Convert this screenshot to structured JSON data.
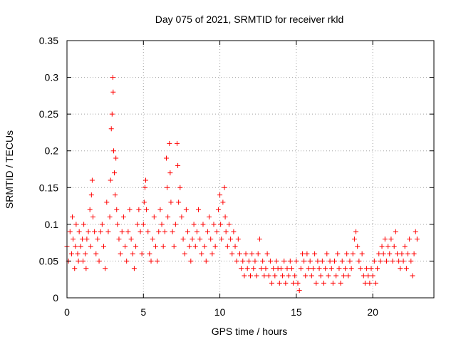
{
  "chart_data": {
    "type": "scatter",
    "title": "Day 075 of 2021, SRMTID for receiver rkld",
    "xlabel": "GPS time / hours",
    "ylabel": "SRMTID / TECUs",
    "xlim": [
      0,
      24
    ],
    "ylim": [
      0,
      0.35
    ],
    "xticks": [
      0,
      5,
      10,
      15,
      20
    ],
    "xtick_labels": [
      "0",
      "5",
      "10",
      "15",
      "20"
    ],
    "yticks": [
      0,
      0.05,
      0.1,
      0.15,
      0.2,
      0.25,
      0.3,
      0.35
    ],
    "ytick_labels": [
      "0",
      "0.05",
      "0.1",
      "0.15",
      "0.2",
      "0.25",
      "0.3",
      "0.35"
    ],
    "grid": true,
    "marker": "+",
    "color": "#ff0000",
    "series": [
      {
        "name": "SRMTID",
        "points": [
          [
            0.0,
            0.07
          ],
          [
            0.1,
            0.05
          ],
          [
            0.2,
            0.09
          ],
          [
            0.3,
            0.06
          ],
          [
            0.35,
            0.11
          ],
          [
            0.4,
            0.08
          ],
          [
            0.5,
            0.04
          ],
          [
            0.55,
            0.07
          ],
          [
            0.6,
            0.1
          ],
          [
            0.7,
            0.06
          ],
          [
            0.75,
            0.05
          ],
          [
            0.8,
            0.09
          ],
          [
            0.9,
            0.07
          ],
          [
            1.0,
            0.08
          ],
          [
            1.05,
            0.05
          ],
          [
            1.1,
            0.1
          ],
          [
            1.2,
            0.06
          ],
          [
            1.25,
            0.04
          ],
          [
            1.3,
            0.08
          ],
          [
            1.4,
            0.09
          ],
          [
            1.5,
            0.12
          ],
          [
            1.55,
            0.07
          ],
          [
            1.6,
            0.14
          ],
          [
            1.65,
            0.16
          ],
          [
            1.7,
            0.11
          ],
          [
            1.8,
            0.09
          ],
          [
            1.9,
            0.06
          ],
          [
            2.0,
            0.08
          ],
          [
            2.1,
            0.05
          ],
          [
            2.2,
            0.09
          ],
          [
            2.3,
            0.1
          ],
          [
            2.4,
            0.07
          ],
          [
            2.5,
            0.04
          ],
          [
            2.6,
            0.13
          ],
          [
            2.7,
            0.09
          ],
          [
            2.8,
            0.11
          ],
          [
            2.85,
            0.16
          ],
          [
            2.9,
            0.23
          ],
          [
            2.95,
            0.25
          ],
          [
            3.0,
            0.3
          ],
          [
            3.02,
            0.28
          ],
          [
            3.05,
            0.2
          ],
          [
            3.1,
            0.17
          ],
          [
            3.15,
            0.14
          ],
          [
            3.2,
            0.19
          ],
          [
            3.25,
            0.12
          ],
          [
            3.3,
            0.1
          ],
          [
            3.4,
            0.08
          ],
          [
            3.5,
            0.06
          ],
          [
            3.6,
            0.09
          ],
          [
            3.7,
            0.11
          ],
          [
            3.8,
            0.07
          ],
          [
            3.9,
            0.05
          ],
          [
            4.0,
            0.09
          ],
          [
            4.1,
            0.12
          ],
          [
            4.2,
            0.08
          ],
          [
            4.3,
            0.06
          ],
          [
            4.4,
            0.04
          ],
          [
            4.5,
            0.07
          ],
          [
            4.6,
            0.1
          ],
          [
            4.7,
            0.12
          ],
          [
            4.8,
            0.09
          ],
          [
            4.9,
            0.06
          ],
          [
            5.0,
            0.1
          ],
          [
            5.05,
            0.13
          ],
          [
            5.1,
            0.15
          ],
          [
            5.15,
            0.16
          ],
          [
            5.2,
            0.12
          ],
          [
            5.3,
            0.09
          ],
          [
            5.4,
            0.06
          ],
          [
            5.5,
            0.05
          ],
          [
            5.6,
            0.08
          ],
          [
            5.7,
            0.11
          ],
          [
            5.8,
            0.07
          ],
          [
            5.9,
            0.05
          ],
          [
            6.0,
            0.09
          ],
          [
            6.1,
            0.12
          ],
          [
            6.2,
            0.1
          ],
          [
            6.3,
            0.07
          ],
          [
            6.4,
            0.09
          ],
          [
            6.5,
            0.19
          ],
          [
            6.55,
            0.15
          ],
          [
            6.6,
            0.11
          ],
          [
            6.7,
            0.21
          ],
          [
            6.75,
            0.17
          ],
          [
            6.8,
            0.13
          ],
          [
            6.9,
            0.09
          ],
          [
            7.0,
            0.07
          ],
          [
            7.1,
            0.1
          ],
          [
            7.2,
            0.21
          ],
          [
            7.25,
            0.18
          ],
          [
            7.3,
            0.13
          ],
          [
            7.4,
            0.15
          ],
          [
            7.5,
            0.11
          ],
          [
            7.6,
            0.08
          ],
          [
            7.7,
            0.06
          ],
          [
            7.8,
            0.12
          ],
          [
            7.9,
            0.09
          ],
          [
            8.0,
            0.07
          ],
          [
            8.1,
            0.05
          ],
          [
            8.2,
            0.08
          ],
          [
            8.3,
            0.1
          ],
          [
            8.4,
            0.07
          ],
          [
            8.5,
            0.09
          ],
          [
            8.6,
            0.12
          ],
          [
            8.7,
            0.08
          ],
          [
            8.8,
            0.06
          ],
          [
            8.9,
            0.1
          ],
          [
            9.0,
            0.07
          ],
          [
            9.1,
            0.05
          ],
          [
            9.2,
            0.09
          ],
          [
            9.3,
            0.11
          ],
          [
            9.4,
            0.08
          ],
          [
            9.5,
            0.06
          ],
          [
            9.6,
            0.1
          ],
          [
            9.7,
            0.07
          ],
          [
            9.8,
            0.09
          ],
          [
            9.9,
            0.12
          ],
          [
            10.0,
            0.14
          ],
          [
            10.05,
            0.1
          ],
          [
            10.1,
            0.08
          ],
          [
            10.2,
            0.13
          ],
          [
            10.3,
            0.15
          ],
          [
            10.35,
            0.11
          ],
          [
            10.4,
            0.09
          ],
          [
            10.5,
            0.07
          ],
          [
            10.6,
            0.1
          ],
          [
            10.7,
            0.08
          ],
          [
            10.8,
            0.06
          ],
          [
            10.9,
            0.09
          ],
          [
            11.0,
            0.07
          ],
          [
            11.1,
            0.05
          ],
          [
            11.2,
            0.08
          ],
          [
            11.3,
            0.06
          ],
          [
            11.4,
            0.04
          ],
          [
            11.5,
            0.05
          ],
          [
            11.6,
            0.03
          ],
          [
            11.7,
            0.06
          ],
          [
            11.8,
            0.04
          ],
          [
            11.9,
            0.05
          ],
          [
            12.0,
            0.03
          ],
          [
            12.1,
            0.06
          ],
          [
            12.2,
            0.04
          ],
          [
            12.3,
            0.05
          ],
          [
            12.4,
            0.03
          ],
          [
            12.5,
            0.06
          ],
          [
            12.6,
            0.08
          ],
          [
            12.7,
            0.04
          ],
          [
            12.8,
            0.05
          ],
          [
            12.9,
            0.03
          ],
          [
            13.0,
            0.04
          ],
          [
            13.1,
            0.06
          ],
          [
            13.2,
            0.03
          ],
          [
            13.3,
            0.05
          ],
          [
            13.4,
            0.02
          ],
          [
            13.5,
            0.04
          ],
          [
            13.6,
            0.03
          ],
          [
            13.7,
            0.05
          ],
          [
            13.8,
            0.04
          ],
          [
            13.9,
            0.02
          ],
          [
            14.0,
            0.04
          ],
          [
            14.1,
            0.03
          ],
          [
            14.2,
            0.05
          ],
          [
            14.3,
            0.02
          ],
          [
            14.4,
            0.04
          ],
          [
            14.5,
            0.03
          ],
          [
            14.6,
            0.05
          ],
          [
            14.7,
            0.04
          ],
          [
            14.8,
            0.02
          ],
          [
            14.9,
            0.03
          ],
          [
            15.0,
            0.05
          ],
          [
            15.1,
            0.02
          ],
          [
            15.2,
            0.01
          ],
          [
            15.3,
            0.04
          ],
          [
            15.4,
            0.06
          ],
          [
            15.5,
            0.05
          ],
          [
            15.6,
            0.03
          ],
          [
            15.7,
            0.06
          ],
          [
            15.8,
            0.04
          ],
          [
            15.9,
            0.05
          ],
          [
            16.0,
            0.03
          ],
          [
            16.1,
            0.04
          ],
          [
            16.2,
            0.06
          ],
          [
            16.3,
            0.02
          ],
          [
            16.4,
            0.05
          ],
          [
            16.5,
            0.04
          ],
          [
            16.6,
            0.03
          ],
          [
            16.7,
            0.05
          ],
          [
            16.8,
            0.02
          ],
          [
            16.9,
            0.04
          ],
          [
            17.0,
            0.06
          ],
          [
            17.1,
            0.03
          ],
          [
            17.2,
            0.05
          ],
          [
            17.3,
            0.04
          ],
          [
            17.4,
            0.02
          ],
          [
            17.5,
            0.05
          ],
          [
            17.6,
            0.03
          ],
          [
            17.7,
            0.06
          ],
          [
            17.8,
            0.04
          ],
          [
            17.9,
            0.02
          ],
          [
            18.0,
            0.05
          ],
          [
            18.1,
            0.03
          ],
          [
            18.2,
            0.04
          ],
          [
            18.3,
            0.06
          ],
          [
            18.4,
            0.03
          ],
          [
            18.5,
            0.05
          ],
          [
            18.6,
            0.04
          ],
          [
            18.7,
            0.06
          ],
          [
            18.8,
            0.08
          ],
          [
            18.9,
            0.09
          ],
          [
            19.0,
            0.07
          ],
          [
            19.1,
            0.05
          ],
          [
            19.2,
            0.04
          ],
          [
            19.3,
            0.06
          ],
          [
            19.4,
            0.03
          ],
          [
            19.5,
            0.02
          ],
          [
            19.6,
            0.04
          ],
          [
            19.7,
            0.03
          ],
          [
            19.8,
            0.02
          ],
          [
            19.9,
            0.04
          ],
          [
            20.0,
            0.03
          ],
          [
            20.1,
            0.05
          ],
          [
            20.2,
            0.02
          ],
          [
            20.3,
            0.04
          ],
          [
            20.4,
            0.06
          ],
          [
            20.5,
            0.05
          ],
          [
            20.6,
            0.07
          ],
          [
            20.7,
            0.06
          ],
          [
            20.8,
            0.08
          ],
          [
            20.9,
            0.05
          ],
          [
            21.0,
            0.07
          ],
          [
            21.1,
            0.06
          ],
          [
            21.2,
            0.08
          ],
          [
            21.3,
            0.05
          ],
          [
            21.4,
            0.07
          ],
          [
            21.5,
            0.09
          ],
          [
            21.6,
            0.06
          ],
          [
            21.7,
            0.05
          ],
          [
            21.8,
            0.04
          ],
          [
            21.9,
            0.06
          ],
          [
            22.0,
            0.05
          ],
          [
            22.1,
            0.07
          ],
          [
            22.2,
            0.04
          ],
          [
            22.3,
            0.06
          ],
          [
            22.4,
            0.08
          ],
          [
            22.5,
            0.05
          ],
          [
            22.6,
            0.03
          ],
          [
            22.7,
            0.06
          ],
          [
            22.8,
            0.09
          ],
          [
            22.9,
            0.08
          ]
        ]
      }
    ]
  }
}
